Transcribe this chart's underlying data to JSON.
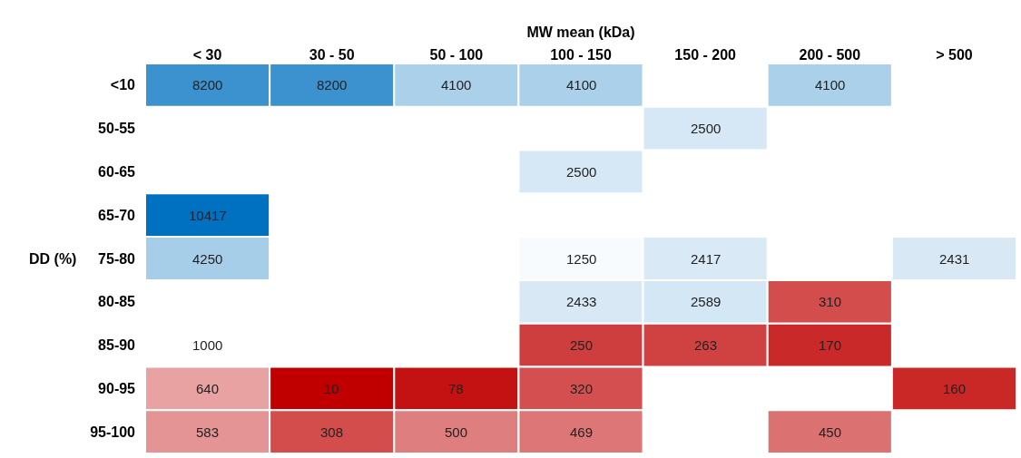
{
  "chart_data": {
    "type": "heatmap",
    "data_labels": true,
    "xlabel": "MW mean (kDa)",
    "ylabel": "DD (%)",
    "categories": [
      "< 30",
      "30 - 50",
      "50 - 100",
      "100 - 150",
      "150 - 200",
      "200 - 500",
      "> 500"
    ],
    "y_categories": [
      "<10",
      "50-55",
      "60-65",
      "65-70",
      "75-80",
      "80-85",
      "85-90",
      "90-95",
      "95-100"
    ],
    "cells": [
      [
        8200,
        8200,
        4100,
        4100,
        null,
        4100,
        null
      ],
      [
        null,
        null,
        null,
        null,
        2500,
        null,
        null
      ],
      [
        null,
        null,
        null,
        2500,
        null,
        null,
        null
      ],
      [
        10417,
        null,
        null,
        null,
        null,
        null,
        null
      ],
      [
        4250,
        null,
        null,
        1250,
        2417,
        null,
        2431
      ],
      [
        null,
        null,
        null,
        2433,
        2589,
        310,
        null
      ],
      [
        1000,
        null,
        null,
        250,
        263,
        170,
        null
      ],
      [
        640,
        10,
        78,
        320,
        null,
        null,
        160
      ],
      [
        583,
        308,
        500,
        469,
        null,
        450,
        null
      ]
    ]
  }
}
